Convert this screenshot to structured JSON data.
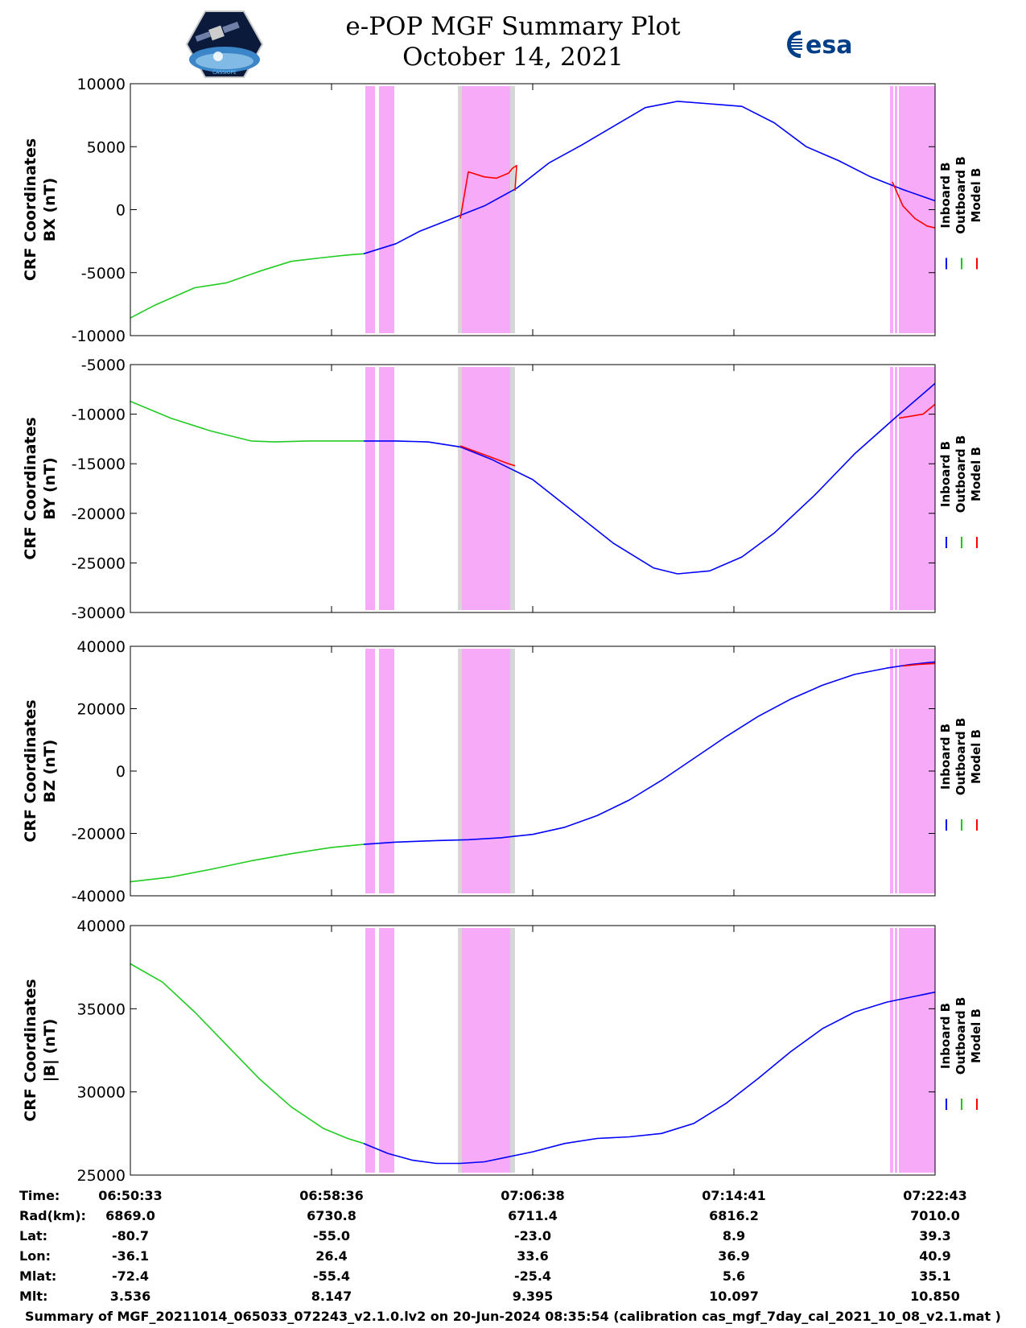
{
  "header": {
    "title_line1": "e-POP MGF Summary Plot",
    "title_line2": "October 14, 2021",
    "left_logo": "cassiope-mission-logo",
    "left_logo_text": "CASSIOPE",
    "right_logo": "esa-logo",
    "right_logo_text": "esa"
  },
  "legend": {
    "entries": [
      {
        "name": "Inboard B",
        "color": "#0000ff"
      },
      {
        "name": "Outboard B",
        "color": "#00cc00"
      },
      {
        "name": "Model B",
        "color": "#ff0000"
      }
    ]
  },
  "colors": {
    "inboard": "#0000ff",
    "outboard": "#22cc22",
    "model": "#ff0000",
    "shade_magenta": "#f7aaf7",
    "shade_gray": "#d6d6d6"
  },
  "chart_data": [
    {
      "type": "line",
      "ylabel": "CRF Coordinates\nBX (nT)",
      "ylim": [
        -10000,
        10000
      ],
      "yticks": [
        -10000,
        -5000,
        0,
        5000,
        10000
      ],
      "series": [
        {
          "name": "Outboard B",
          "x": [
            0,
            0.03,
            0.08,
            0.12,
            0.16,
            0.2,
            0.24,
            0.27,
            0.29
          ],
          "y": [
            -8600,
            -7600,
            -6200,
            -5800,
            -4900,
            -4100,
            -3800,
            -3600,
            -3500
          ]
        },
        {
          "name": "Inboard B",
          "x": [
            0.29,
            0.33,
            0.36,
            0.4,
            0.44,
            0.48,
            0.52,
            0.56,
            0.6,
            0.64,
            0.68,
            0.72,
            0.76,
            0.8,
            0.84,
            0.88,
            0.92,
            0.96,
            1.0
          ],
          "y": [
            -3500,
            -2700,
            -1700,
            -700,
            300,
            1700,
            3700,
            5100,
            6600,
            8100,
            8600,
            8400,
            8200,
            6900,
            5000,
            3900,
            2600,
            1600,
            700
          ]
        },
        {
          "name": "Model B",
          "x": [
            0.41,
            0.42,
            0.44,
            0.455,
            0.47,
            0.475,
            0.48,
            0.478
          ],
          "y": [
            -700,
            3000,
            2600,
            2500,
            2900,
            3300,
            3500,
            1500
          ]
        },
        {
          "name": "Model B",
          "x": [
            0.947,
            0.96,
            0.975,
            0.99,
            1.0
          ],
          "y": [
            2200,
            300,
            -700,
            -1300,
            -1450
          ]
        }
      ]
    },
    {
      "type": "line",
      "ylabel": "CRF Coordinates\nBY (nT)",
      "ylim": [
        -30000,
        -5000
      ],
      "yticks": [
        -30000,
        -25000,
        -20000,
        -15000,
        -10000,
        -5000
      ],
      "series": [
        {
          "name": "Outboard B",
          "x": [
            0,
            0.05,
            0.1,
            0.15,
            0.18,
            0.22,
            0.26,
            0.29
          ],
          "y": [
            -8700,
            -10400,
            -11700,
            -12700,
            -12800,
            -12700,
            -12700,
            -12700
          ]
        },
        {
          "name": "Inboard B",
          "x": [
            0.29,
            0.33,
            0.37,
            0.41,
            0.45,
            0.5,
            0.55,
            0.6,
            0.65,
            0.68,
            0.72,
            0.76,
            0.8,
            0.85,
            0.9,
            0.95,
            1.0
          ],
          "y": [
            -12700,
            -12700,
            -12800,
            -13300,
            -14600,
            -16600,
            -19800,
            -23000,
            -25500,
            -26100,
            -25800,
            -24400,
            -22000,
            -18200,
            -14000,
            -10400,
            -6900
          ]
        },
        {
          "name": "Model B",
          "x": [
            0.41,
            0.43,
            0.45,
            0.47,
            0.478
          ],
          "y": [
            -13200,
            -13800,
            -14400,
            -15000,
            -15200
          ]
        },
        {
          "name": "Model B",
          "x": [
            0.955,
            0.97,
            0.985,
            1.0
          ],
          "y": [
            -10400,
            -10200,
            -10000,
            -9000
          ]
        }
      ]
    },
    {
      "type": "line",
      "ylabel": "CRF Coordinates\nBZ (nT)",
      "ylim": [
        -40000,
        40000
      ],
      "yticks": [
        -40000,
        -20000,
        0,
        20000,
        40000
      ],
      "series": [
        {
          "name": "Outboard B",
          "x": [
            0,
            0.05,
            0.1,
            0.15,
            0.2,
            0.25,
            0.29
          ],
          "y": [
            -35500,
            -34000,
            -31500,
            -28800,
            -26500,
            -24500,
            -23500
          ]
        },
        {
          "name": "Inboard B",
          "x": [
            0.29,
            0.33,
            0.38,
            0.42,
            0.46,
            0.5,
            0.54,
            0.58,
            0.62,
            0.66,
            0.7,
            0.74,
            0.78,
            0.82,
            0.86,
            0.9,
            0.94,
            0.97,
            1.0
          ],
          "y": [
            -23500,
            -22800,
            -22300,
            -22000,
            -21400,
            -20300,
            -18000,
            -14300,
            -9300,
            -3000,
            4000,
            11000,
            17500,
            23000,
            27500,
            31000,
            33000,
            34200,
            35000
          ]
        },
        {
          "name": "Model B",
          "x": [
            0.96,
            0.98,
            1.0
          ],
          "y": [
            33700,
            34200,
            34500
          ]
        }
      ]
    },
    {
      "type": "line",
      "ylabel": "CRF Coordinates\n|B| (nT)",
      "ylim": [
        25000,
        40000
      ],
      "yticks": [
        25000,
        30000,
        35000,
        40000
      ],
      "series": [
        {
          "name": "Outboard B",
          "x": [
            0,
            0.04,
            0.08,
            0.12,
            0.16,
            0.2,
            0.24,
            0.27,
            0.29
          ],
          "y": [
            37700,
            36600,
            34800,
            32800,
            30800,
            29100,
            27800,
            27200,
            26900
          ]
        },
        {
          "name": "Inboard B",
          "x": [
            0.29,
            0.32,
            0.35,
            0.38,
            0.41,
            0.44,
            0.47,
            0.5,
            0.54,
            0.58,
            0.62,
            0.66,
            0.7,
            0.74,
            0.78,
            0.82,
            0.86,
            0.9,
            0.94,
            0.97,
            1.0
          ],
          "y": [
            26900,
            26300,
            25900,
            25700,
            25700,
            25800,
            26100,
            26400,
            26900,
            27200,
            27300,
            27500,
            28100,
            29300,
            30800,
            32400,
            33800,
            34800,
            35400,
            35700,
            36000
          ]
        }
      ]
    }
  ],
  "shaded_regions": [
    {
      "x0": 0.292,
      "x1": 0.304,
      "kind": "magenta"
    },
    {
      "x0": 0.309,
      "x1": 0.328,
      "kind": "magenta"
    },
    {
      "x0": 0.407,
      "x1": 0.412,
      "kind": "gray"
    },
    {
      "x0": 0.412,
      "x1": 0.472,
      "kind": "magenta"
    },
    {
      "x0": 0.472,
      "x1": 0.478,
      "kind": "gray"
    },
    {
      "x0": 0.944,
      "x1": 0.948,
      "kind": "magenta"
    },
    {
      "x0": 0.95,
      "x1": 0.953,
      "kind": "magenta"
    },
    {
      "x0": 0.955,
      "x1": 1.0,
      "kind": "magenta"
    }
  ],
  "ephemeris": {
    "rows": [
      {
        "label": "Time:",
        "values": [
          "06:50:33",
          "06:58:36",
          "07:06:38",
          "07:14:41",
          "07:22:43"
        ]
      },
      {
        "label": "Rad(km):",
        "values": [
          "6869.0",
          "6730.8",
          "6711.4",
          "6816.2",
          "7010.0"
        ]
      },
      {
        "label": "Lat:",
        "values": [
          "-80.7",
          "-55.0",
          "-23.0",
          "8.9",
          "39.3"
        ]
      },
      {
        "label": "Lon:",
        "values": [
          "-36.1",
          "26.4",
          "33.6",
          "36.9",
          "40.9"
        ]
      },
      {
        "label": "Mlat:",
        "values": [
          "-72.4",
          "-55.4",
          "-25.4",
          "5.6",
          "35.1"
        ]
      },
      {
        "label": "Mlt:",
        "values": [
          "3.536",
          "8.147",
          "9.395",
          "10.097",
          "10.850"
        ]
      }
    ]
  },
  "footer": {
    "text": "Summary of MGF_20211014_065033_072243_v2.1.0.lv2 on 20-Jun-2024 08:35:54 (calibration cas_mgf_7day_cal_2021_10_08_v2.1.mat )"
  }
}
